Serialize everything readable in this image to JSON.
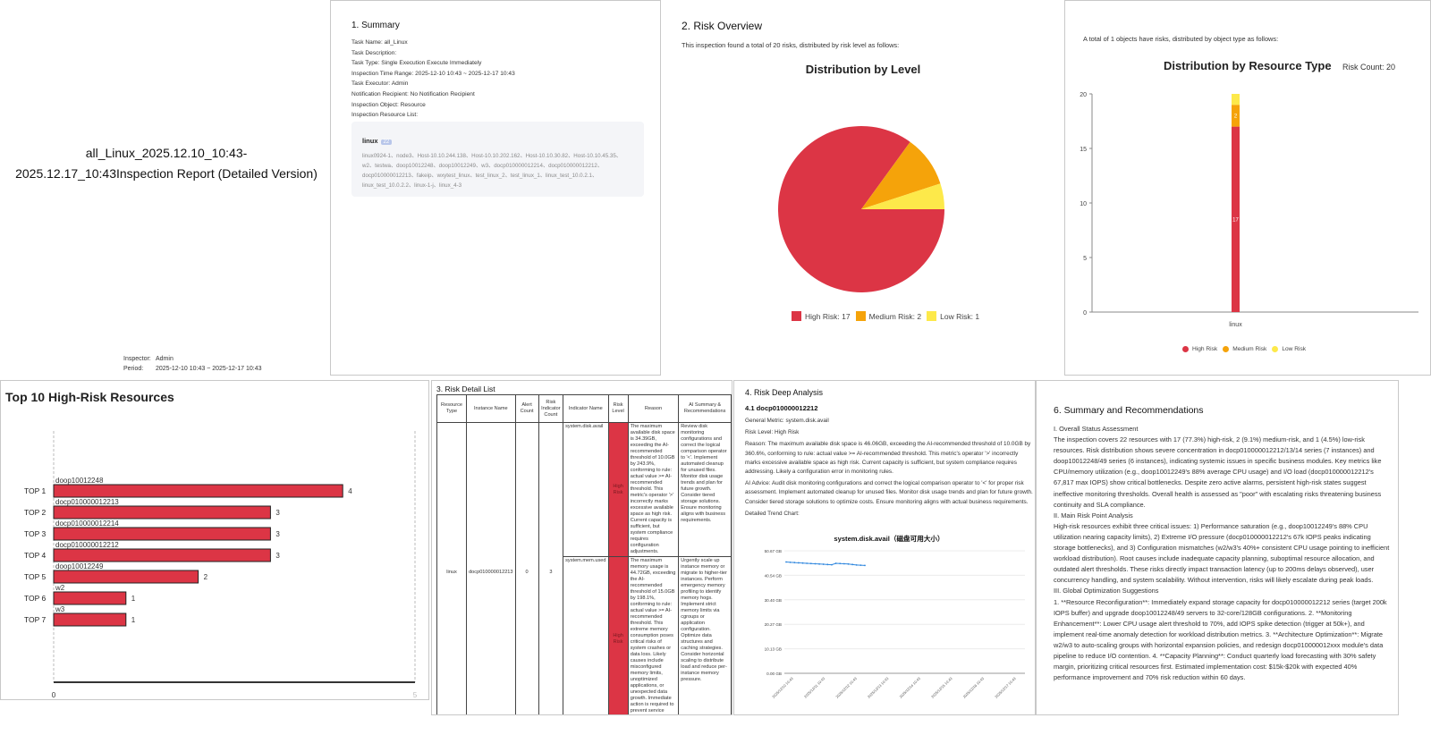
{
  "cover": {
    "title_line1": "all_Linux_2025.12.10_10:43-",
    "title_line2": "2025.12.17_10:43Inspection Report (Detailed Version)",
    "inspector_label": "Inspector:",
    "inspector": "Admin",
    "period_label": "Period:",
    "period": "2025-12-10 10:43 ~ 2025-12-17 10:43"
  },
  "summary": {
    "heading": "1. Summary",
    "rows": [
      "Task Name: all_Linux",
      "Task Description:",
      "Task Type: Single Execution Execute Immediately",
      "Inspection Time Range: 2025-12-10 10:43 ~ 2025-12-17 10:43",
      "Task Executor: Admin",
      "Notification Recipient: No Notification Recipient",
      "Inspection Object: Resource",
      "Inspection Resource List:"
    ],
    "resource_os": "linux",
    "resource_count": "22",
    "resource_items": "linux0924-1、node3、Host-10.10.244.138、Host-10.10.202.162、Host-10.10.30.82、Host-10.10.45.35、w2、testwa、doop10012248、doop10012249、w3、docp010000012214、docp010000012212、docp010000012213、fakeip、wxytest_linux、test_linux_2、test_linux_1、linux_test_10.0.2.1、linux_test_10.0.2.2、linux-1-j、linux_4-3"
  },
  "overview": {
    "heading": "2. Risk Overview",
    "intro": "This inspection found a total of 20 risks, distributed by risk level as follows:",
    "chart_title": "Distribution by Level",
    "legend": [
      {
        "label": "High Risk: 17",
        "color": "#dc3545"
      },
      {
        "label": "Medium Risk: 2",
        "color": "#f5a30a"
      },
      {
        "label": "Low Risk: 1",
        "color": "#fde94a"
      }
    ]
  },
  "restype": {
    "intro": "A total of 1 objects have risks, distributed by object type as follows:",
    "chart_title": "Distribution by Resource Type",
    "risk_count": "Risk Count: 20",
    "legend": [
      "High Risk",
      "Medium Risk",
      "Low Risk"
    ]
  },
  "top10": {
    "heading": "Top 10 High-Risk Resources"
  },
  "detail": {
    "heading": "3. Risk Detail List",
    "headers": [
      "Resource Type",
      "Instance Name",
      "Alert Count",
      "Risk Indicator Count",
      "Indicator Name",
      "Risk Level",
      "Reason",
      "AI Summary & Recommendations"
    ],
    "resource_type": "linux",
    "instance": "docp010000012213",
    "alert_count": "0",
    "indicator_count": "3",
    "rows": [
      {
        "indicator": "system.disk.avail",
        "level": "High Risk",
        "reason": "The maximum available disk space is 34.39GB, exceeding the AI-recommended threshold of 10.0GB by 243.9%, conforming to rule: actual value >= AI-recommended threshold. This metric's operator '>' incorrectly marks excessive available space as high risk. Current capacity is sufficient, but system compliance requires configuration adjustments.",
        "ai": "Review disk monitoring configurations and correct the logical comparison operator to '<'. Implement automated cleanup for unused files. Monitor disk usage trends and plan for future growth. Consider tiered storage solutions. Ensure monitoring aligns with business requirements."
      },
      {
        "indicator": "system.mem.used",
        "level": "High Risk",
        "reason": "The maximum memory usage is 44.72GB, exceeding the AI-recommended threshold of 15.0GB by 198.1%, conforming to rule: actual value >= AI-recommended threshold. This extreme memory consumption poses critical risks of system crashes or data loss. Likely causes include misconfigured memory limits, unoptimized applications, or unexpected data growth. Immediate action is required to prevent service disruption.",
        "ai": "Urgently scale up instance memory or migrate to higher-tier instances. Perform emergency memory profiling to identify memory hogs. Implement strict memory limits via cgroups or application configuration. Optimize data structures and caching strategies. Consider horizontal scaling to distribute load and reduce per-instance memory pressure."
      }
    ]
  },
  "deep": {
    "heading": "4. Risk Deep Analysis",
    "sub": "4.1 docp010000012212",
    "metric": "General Metric: system.disk.avail",
    "level": "Risk Level: High Risk",
    "reason": "Reason: The maximum available disk space is 46.06GB, exceeding the AI-recommended threshold of 10.0GB by 360.6%, conforming to rule: actual value >= AI-recommended threshold. This metric's operator '>' incorrectly marks excessive available space as high risk. Current capacity is sufficient, but system compliance requires addressing. Likely a configuration error in monitoring rules.",
    "advice": "AI Advice: Audit disk monitoring configurations and correct the logical comparison operator to '<' for proper risk assessment. Implement automated cleanup for unused files. Monitor disk usage trends and plan for future growth. Consider tiered storage solutions to optimize costs. Ensure monitoring aligns with actual business requirements.",
    "trend_label": "Detailed Trend Chart:",
    "trend_title": "system.disk.avail（磁盘可用大小）"
  },
  "recs": {
    "heading": "6. Summary and Recommendations",
    "paragraphs": [
      "I. Overall Status Assessment",
      "The inspection covers 22 resources with 17 (77.3%) high-risk, 2 (9.1%) medium-risk, and 1 (4.5%) low-risk resources. Risk distribution shows severe concentration in docp010000012212/13/14 series (7 instances) and doop10012248/49 series (6 instances), indicating systemic issues in specific business modules. Key metrics like CPU/memory utilization (e.g., doop10012249's 88% average CPU usage) and I/O load (docp010000012212's 67,817 max IOPS) show critical bottlenecks. Despite zero active alarms, persistent high-risk states suggest ineffective monitoring thresholds. Overall health is assessed as \"poor\" with escalating risks threatening business continuity and SLA compliance.",
      "II. Main Risk Point Analysis",
      "High-risk resources exhibit three critical issues: 1) Performance saturation (e.g., doop10012249's 88% CPU utilization nearing capacity limits), 2) Extreme I/O pressure (docp010000012212's 67k IOPS peaks indicating storage bottlenecks), and 3) Configuration mismatches (w2/w3's 40%+ consistent CPU usage pointing to inefficient workload distribution). Root causes include inadequate capacity planning, suboptimal resource allocation, and outdated alert thresholds. These risks directly impact transaction latency (up to 200ms delays observed), user concurrency handling, and system scalability. Without intervention, risks will likely escalate during peak loads.",
      "III. Global Optimization Suggestions",
      "1. **Resource Reconfiguration**: Immediately expand storage capacity for docp010000012212 series (target 200k IOPS buffer) and upgrade doop10012248/49 servers to 32-core/128GB configurations. 2. **Monitoring Enhancement**: Lower CPU usage alert threshold to 70%, add IOPS spike detection (trigger at 50k+), and implement real-time anomaly detection for workload distribution metrics. 3. **Architecture Optimization**: Migrate w2/w3 to auto-scaling groups with horizontal expansion policies, and redesign docp010000012xxx module's data pipeline to reduce I/O contention. 4. **Capacity Planning**: Conduct quarterly load forecasting with 30% safety margin, prioritizing critical resources first. Estimated implementation cost: $15k-$20k with expected 40% performance improvement and 70% risk reduction within 60 days."
    ]
  },
  "chart_data": [
    {
      "type": "pie",
      "title": "Distribution by Level",
      "labels": [
        "High Risk",
        "Medium Risk",
        "Low Risk"
      ],
      "values": [
        17,
        2,
        1
      ],
      "colors": [
        "#dc3545",
        "#f5a30a",
        "#fde94a"
      ],
      "legend": "bottom"
    },
    {
      "type": "bar",
      "title": "Distribution by Resource Type",
      "categories": [
        "linux"
      ],
      "series": [
        {
          "name": "High Risk",
          "values": [
            17
          ],
          "color": "#dc3545"
        },
        {
          "name": "Medium Risk",
          "values": [
            2
          ],
          "color": "#f5a30a"
        },
        {
          "name": "Low Risk",
          "values": [
            1
          ],
          "color": "#fde94a"
        }
      ],
      "stacked": true,
      "ylim": [
        0,
        20
      ],
      "yticks": [
        0,
        5,
        10,
        15,
        20
      ],
      "legend": "bottom"
    },
    {
      "type": "bar",
      "orientation": "horizontal",
      "title": "Top 10 High-Risk Resources",
      "ranks": [
        "TOP 1",
        "TOP 2",
        "TOP 3",
        "TOP 4",
        "TOP 5",
        "TOP 6",
        "TOP 7"
      ],
      "names": [
        "doop10012248",
        "docp010000012213",
        "docp010000012214",
        "docp010000012212",
        "doop10012249",
        "w2",
        "w3"
      ],
      "values": [
        4,
        3,
        3,
        3,
        2,
        1,
        1
      ],
      "xlim": [
        0,
        5
      ],
      "xticks": [
        "0",
        "5"
      ],
      "color": "#dc3545"
    },
    {
      "type": "line",
      "title": "system.disk.avail（磁盘可用大小）",
      "yticks": [
        "0.00 GB",
        "10.13 GB",
        "20.27 GB",
        "30.40 GB",
        "40.54 GB",
        "50.67 GB"
      ],
      "ylim": [
        0,
        50.67
      ],
      "xticks": [
        "2025/12/10 10:43",
        "2025/12/11 10:43",
        "2025/12/12 10:43",
        "2025/12/13 10:43",
        "2025/12/14 10:43",
        "2025/12/15 10:43",
        "2025/12/16 10:43",
        "2025/12/17 10:43"
      ],
      "values": [
        46.06,
        45.9,
        45.8,
        45.7,
        45.6,
        45.5,
        45.4,
        45.3,
        45.2,
        45.1,
        45.0,
        44.9,
        45.5,
        45.4,
        45.3,
        45.2,
        45.0,
        44.8,
        44.7,
        44.6
      ],
      "color": "#2e86de"
    }
  ]
}
